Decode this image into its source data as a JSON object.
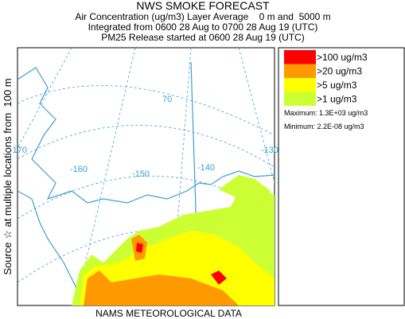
{
  "header": {
    "title": "NWS SMOKE FORECAST",
    "line1": "Air Concentration (ug/m3) Layer Average    0 m and  5000 m",
    "line2": "Integrated from 0600 28 Aug to 0700 28 Aug 19 (UTC)",
    "line3": "PM25 Release started at 0600 28 Aug 19 (UTC)"
  },
  "side_label": "Source ☆ at multiple locations from  100 m",
  "footer": "NAMS METEOROLOGICAL DATA",
  "map_labels": [
    "-170",
    "-160",
    "-150",
    "-140",
    "-130",
    "70"
  ],
  "legend": {
    "items": [
      {
        "label": ">100 ug/m3",
        "color": "#ff0000"
      },
      {
        "label": ">20 ug/m3",
        "color": "#ff9900"
      },
      {
        "label": ">5 ug/m3",
        "color": "#ffff00"
      },
      {
        "label": ">1 ug/m3",
        "color": "#ccff33"
      }
    ],
    "maximum": "Maximum: 1.3E+03 ug/m3",
    "minimum": "Minimum: 2.2E-08 ug/m3"
  }
}
